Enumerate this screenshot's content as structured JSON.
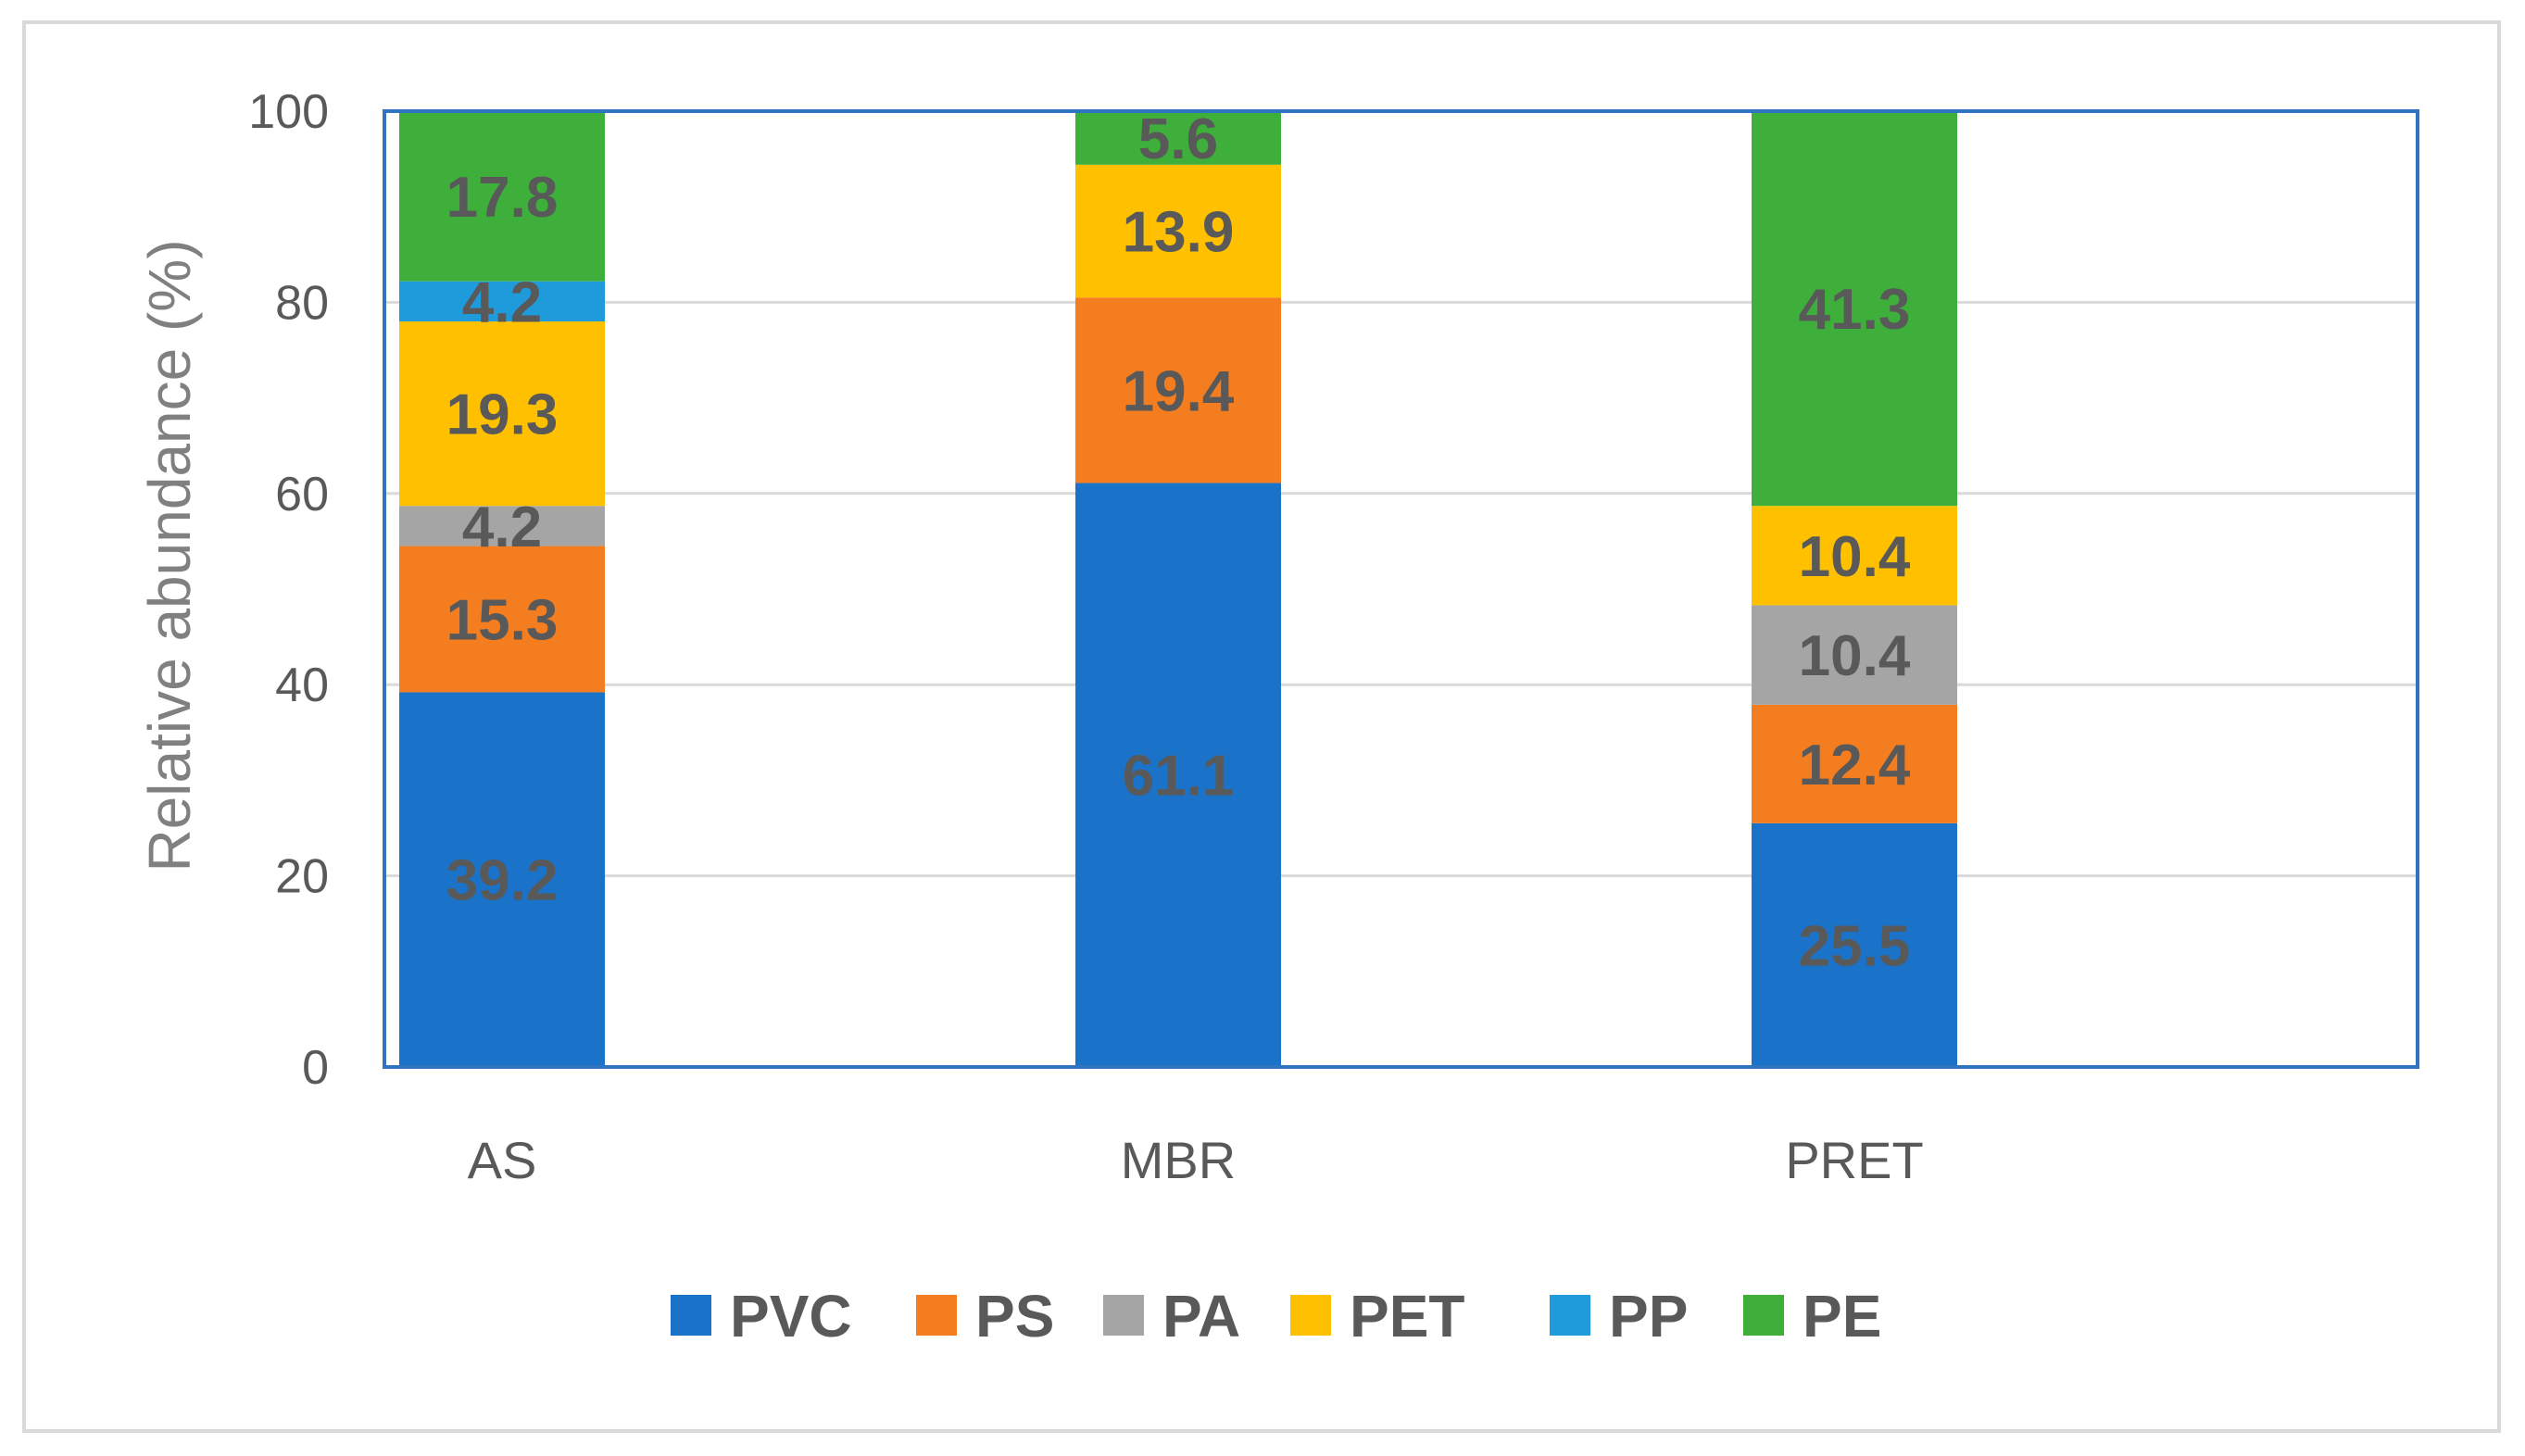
{
  "chart_data": {
    "type": "bar",
    "stacked": true,
    "title": "",
    "xlabel": "",
    "ylabel": "Relative abundance (%)",
    "ylim": [
      0,
      100
    ],
    "yticks": [
      0,
      20,
      40,
      60,
      80,
      100
    ],
    "categories": [
      "AS",
      "MBR",
      "PRET"
    ],
    "series": [
      {
        "name": "PVC",
        "color": "#1a73c8",
        "values": [
          39.2,
          61.1,
          25.5
        ],
        "labels": [
          "39.2",
          "61.1",
          "25.5"
        ]
      },
      {
        "name": "PS",
        "color": "#f47d20",
        "values": [
          15.3,
          19.4,
          12.4
        ],
        "labels": [
          "15.3",
          "19.4",
          "12.4"
        ]
      },
      {
        "name": "PA",
        "color": "#a5a5a5",
        "values": [
          4.2,
          0,
          10.4
        ],
        "labels": [
          "4.2",
          "",
          "10.4"
        ]
      },
      {
        "name": "PET",
        "color": "#ffc000",
        "values": [
          19.3,
          13.9,
          10.4
        ],
        "labels": [
          "19.3",
          "13.9",
          "10.4"
        ]
      },
      {
        "name": "PP",
        "color": "#1f9bdb",
        "values": [
          4.2,
          0,
          0
        ],
        "labels": [
          "4.2",
          "",
          ""
        ]
      },
      {
        "name": "PE",
        "color": "#3daf3a",
        "values": [
          17.8,
          5.6,
          41.3
        ],
        "labels": [
          "17.8",
          "5.6",
          "41.3"
        ]
      }
    ],
    "legend_position": "bottom",
    "grid": true,
    "axis_color": "#2f74c0",
    "grid_color": "#d9d9d9"
  }
}
